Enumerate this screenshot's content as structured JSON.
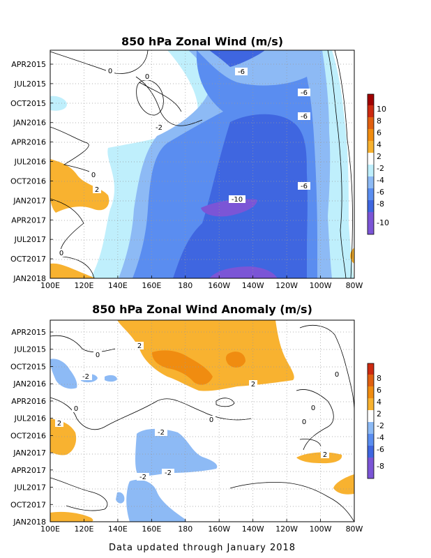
{
  "footer": "Data updated through January 2018",
  "colors": {
    "neg10": "#7b55d6",
    "neg8": "#3f66e0",
    "neg6": "#5a8df0",
    "neg4": "#8dbaf5",
    "neg2": "#bfeffc",
    "zero": "#ffffff",
    "pos2": "#f8b230",
    "pos4": "#f08c10",
    "pos6": "#e06010",
    "pos8": "#cc2a10",
    "pos10": "#a00000"
  },
  "chart_data": [
    {
      "type": "heatmap",
      "title": "850 hPa Zonal Wind (m/s)",
      "x_ticks": [
        "100E",
        "120E",
        "140E",
        "160E",
        "180",
        "160W",
        "140W",
        "120W",
        "100W",
        "80W"
      ],
      "y_ticks": [
        "APR2015",
        "JUL2015",
        "OCT2015",
        "JAN2016",
        "APR2016",
        "JUL2016",
        "OCT2016",
        "JAN2017",
        "APR2017",
        "JUL2017",
        "OCT2017",
        "JAN2018"
      ],
      "colorbar_ticks": [
        "10",
        "8",
        "6",
        "4",
        "2",
        "-2",
        "-4",
        "-6",
        "-8",
        "-10"
      ],
      "contour_labels": [
        "0",
        "0",
        "-2",
        "0",
        "0",
        "2",
        "-6",
        "-6",
        "-6",
        "-6",
        "-10"
      ],
      "grid": true
    },
    {
      "type": "heatmap",
      "title": "850 hPa Zonal Wind Anomaly (m/s)",
      "x_ticks": [
        "100E",
        "120E",
        "140E",
        "160E",
        "180",
        "160W",
        "140W",
        "120W",
        "100W",
        "80W"
      ],
      "y_ticks": [
        "APR2015",
        "JUL2015",
        "OCT2015",
        "JAN2016",
        "APR2016",
        "JUL2016",
        "OCT2016",
        "JAN2017",
        "APR2017",
        "JUL2017",
        "OCT2017",
        "JAN2018"
      ],
      "colorbar_ticks": [
        "8",
        "6",
        "4",
        "2",
        "-2",
        "-4",
        "-6",
        "-8"
      ],
      "contour_labels": [
        "2",
        "0",
        "-2",
        "2",
        "0",
        "0",
        "2",
        "0",
        "0",
        "0",
        "-2",
        "-2",
        "-2",
        "2"
      ],
      "grid": true
    }
  ]
}
